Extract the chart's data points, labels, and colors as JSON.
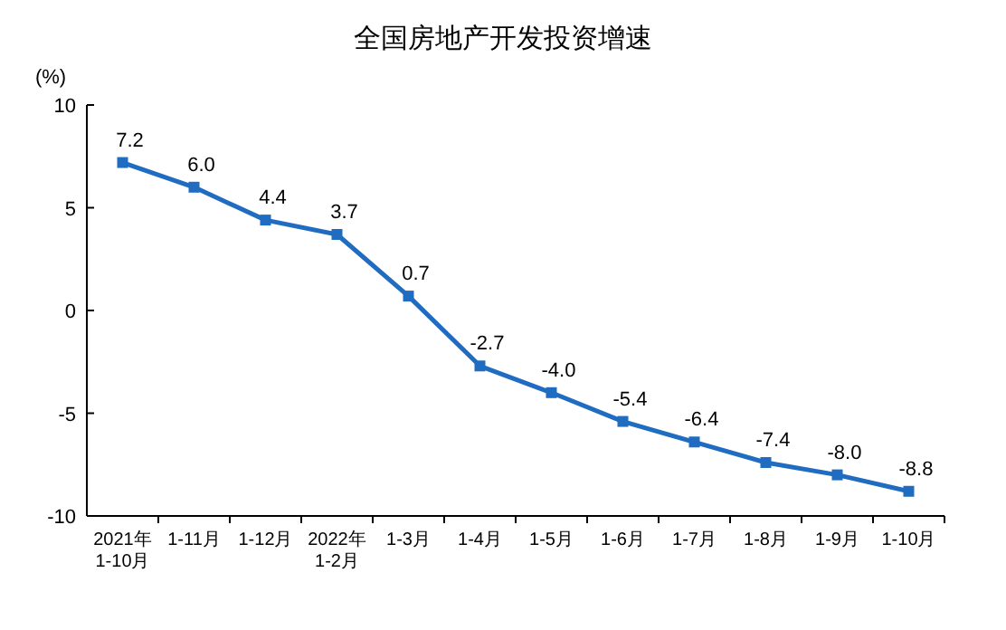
{
  "chart_data": {
    "type": "line",
    "title": "全国房地产开发投资增速",
    "ylabel": "(%)",
    "categories": [
      "2021年\n1-10月",
      "1-11月",
      "1-12月",
      "2022年\n1-2月",
      "1-3月",
      "1-4月",
      "1-5月",
      "1-6月",
      "1-7月",
      "1-8月",
      "1-9月",
      "1-10月"
    ],
    "series": [
      {
        "color": "#1f6cc0",
        "values": [
          7.2,
          6.0,
          4.4,
          3.7,
          0.7,
          -2.7,
          -4.0,
          -5.4,
          -6.4,
          -7.4,
          -8.0,
          -8.8
        ],
        "value_labels": [
          "7.2",
          "6.0",
          "4.4",
          "3.7",
          "0.7",
          "-2.7",
          "-4.0",
          "-5.4",
          "-6.4",
          "-7.4",
          "-8.0",
          "-8.8"
        ]
      }
    ],
    "ylim": [
      -10,
      10
    ],
    "yticks": [
      -10,
      -5,
      0,
      5,
      10
    ],
    "marker": "square",
    "line_style": "solid"
  }
}
